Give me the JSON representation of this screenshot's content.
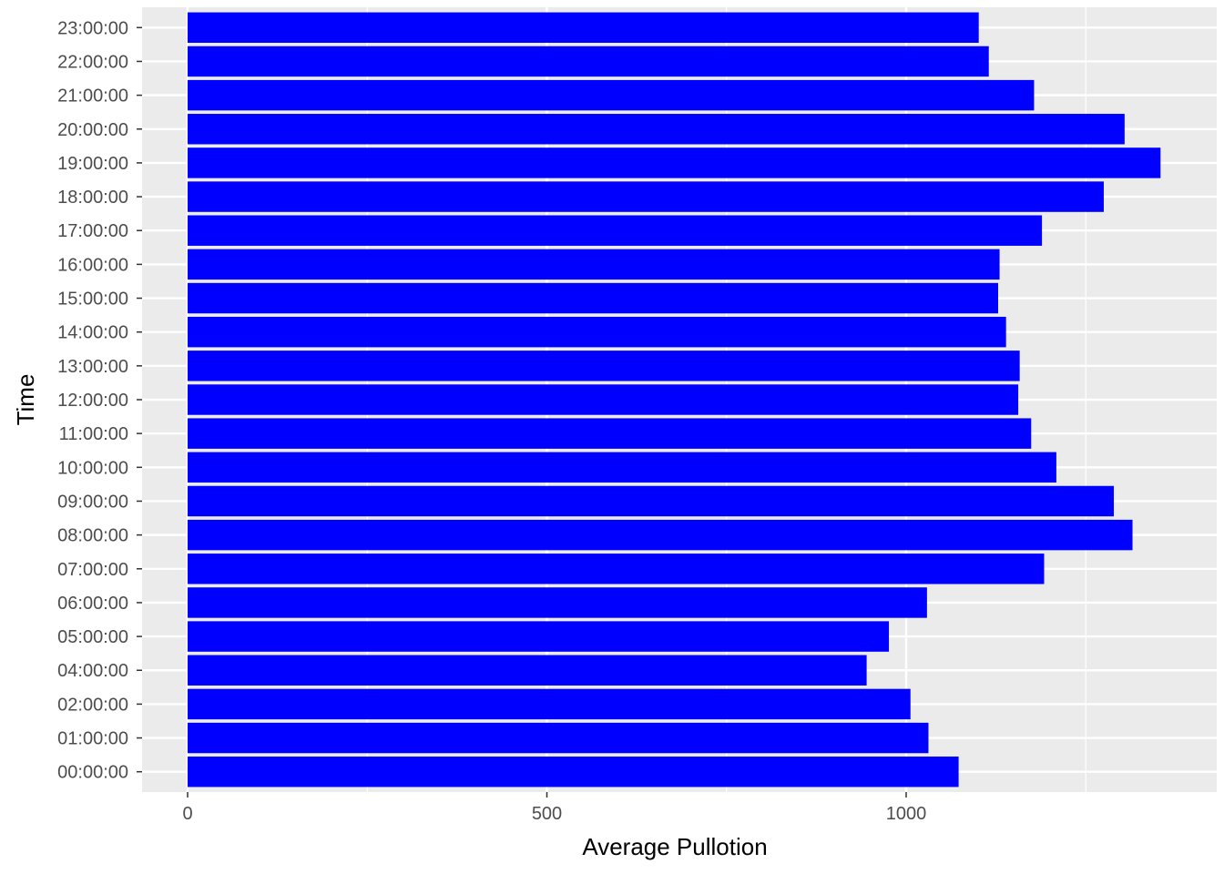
{
  "chart_data": {
    "type": "bar",
    "orientation": "horizontal",
    "xlabel": "Average Pullotion",
    "ylabel": "Time",
    "xlim": [
      -62,
      1431
    ],
    "x_ticks": [
      0,
      500,
      1000
    ],
    "x_tick_labels": [
      "0",
      "500",
      "1000"
    ],
    "grid": true,
    "colors": {
      "bar": "#0000FF",
      "panel_background": "#EBEBEB",
      "grid": "#FFFFFF",
      "tick_text": "#4D4D4D",
      "title_text": "#000000"
    },
    "categories": [
      "00:00:00",
      "01:00:00",
      "02:00:00",
      "04:00:00",
      "05:00:00",
      "06:00:00",
      "07:00:00",
      "08:00:00",
      "09:00:00",
      "10:00:00",
      "11:00:00",
      "12:00:00",
      "13:00:00",
      "14:00:00",
      "15:00:00",
      "16:00:00",
      "17:00:00",
      "18:00:00",
      "19:00:00",
      "20:00:00",
      "21:00:00",
      "22:00:00",
      "23:00:00"
    ],
    "values": [
      1073,
      1031,
      1006,
      945,
      976,
      1029,
      1192,
      1315,
      1289,
      1209,
      1174,
      1156,
      1158,
      1139,
      1128,
      1130,
      1189,
      1275,
      1354,
      1304,
      1178,
      1115,
      1101
    ]
  }
}
